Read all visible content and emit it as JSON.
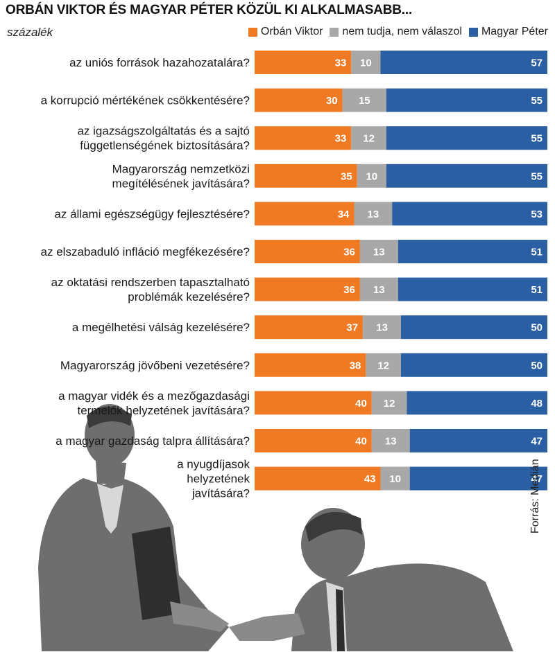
{
  "header": {
    "title": "ORBÁN VIKTOR ÉS MAGYAR PÉTER KÖZÜL KI ALKALMASABB...",
    "unit": "százalék"
  },
  "source": "Forrás: Medián",
  "colors": {
    "orban": "#f07a24",
    "unknown": "#a8a8a8",
    "magyar": "#2a5fa4",
    "figure": "#6e6e6e"
  },
  "legend": [
    {
      "label": "Orbán Viktor",
      "color": "#f07a24"
    },
    {
      "label": "nem tudja, nem válaszol",
      "color": "#a8a8a8"
    },
    {
      "label": "Magyar Péter",
      "color": "#2a5fa4"
    }
  ],
  "chart_data": {
    "type": "bar",
    "orientation": "horizontal",
    "stacked": true,
    "xlim": [
      0,
      100
    ],
    "categories": [
      "az uniós források hazahozatalára?",
      "a korrupció mértékének csökkentésére?",
      "az igazságszolgáltatás és a sajtó függetlenségének biztosítására?",
      "Magyarország nemzetközi megítélésének javítására?",
      "az állami egészségügy fejlesztésére?",
      "az elszabaduló infláció megfékezésére?",
      "az oktatási rendszerben tapasztalható problémák kezelésére?",
      "a megélhetési válság kezelésére?",
      "Magyarország jövőbeni vezetésére?",
      "a magyar vidék és a mezőgazdasági termelők helyzetének javítására?",
      "a magyar gazdaság talpra állítására?",
      "a nyugdíjasok helyzetének javítására?"
    ],
    "category_lines": [
      [
        "az uniós források hazahozatalára?"
      ],
      [
        "a korrupció mértékének csökkentésére?"
      ],
      [
        "az igazságszolgáltatás és a sajtó",
        "függetlenségének biztosítására?"
      ],
      [
        "Magyarország nemzetközi",
        "megítélésének javítására?"
      ],
      [
        "az állami egészségügy fejlesztésére?"
      ],
      [
        "az elszabaduló infláció megfékezésére?"
      ],
      [
        "az oktatási rendszerben tapasztalható",
        "problémák kezelésére?"
      ],
      [
        "a megélhetési válság kezelésére?"
      ],
      [
        "Magyarország jövőbeni vezetésére?"
      ],
      [
        "a magyar vidék és a mezőgazdasági",
        "termelők helyzetének javítására?"
      ],
      [
        "a magyar gazdaság talpra állítására?"
      ],
      [
        "a nyugdíjasok",
        "helyzetének",
        "javítására?"
      ]
    ],
    "series": [
      {
        "name": "Orbán Viktor",
        "values": [
          33,
          30,
          33,
          35,
          34,
          36,
          36,
          37,
          38,
          40,
          40,
          43
        ]
      },
      {
        "name": "nem tudja, nem válaszol",
        "values": [
          10,
          15,
          12,
          10,
          13,
          13,
          13,
          13,
          12,
          12,
          13,
          10
        ]
      },
      {
        "name": "Magyar Péter",
        "values": [
          57,
          55,
          55,
          55,
          53,
          51,
          51,
          50,
          50,
          48,
          47,
          47
        ]
      }
    ]
  }
}
